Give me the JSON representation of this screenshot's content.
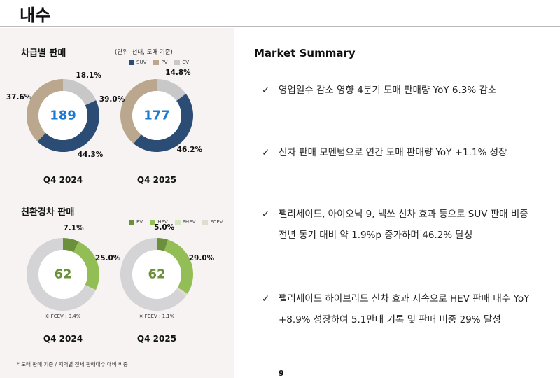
{
  "header": {
    "title": "내수"
  },
  "left": {
    "section1_title": "차급별 판매",
    "unit_note": "(단위: 천대, 도매 기준)",
    "legend1": [
      {
        "label": "SUV",
        "color": "#2b4c74"
      },
      {
        "label": "PV",
        "color": "#bba78e"
      },
      {
        "label": "CV",
        "color": "#c8c8c8"
      }
    ],
    "section2_title": "친환경차 판매",
    "legend2": [
      {
        "label": "EV",
        "color": "#6b8f3a"
      },
      {
        "label": "HEV",
        "color": "#93bd55"
      },
      {
        "label": "PHEV",
        "color": "#d6e6c0"
      },
      {
        "label": "FCEV",
        "color": "#e0ddd0"
      }
    ],
    "footnote": "* 도매 판매 기준 / 지역별 전체 판매대수 대비 비중"
  },
  "chart_data": [
    {
      "type": "pie",
      "donut": true,
      "period": "Q4 2024",
      "total": "189",
      "total_color": "#1a7ad4",
      "slices": [
        {
          "name": "CV",
          "value": 18.1,
          "label": "18.1%",
          "color": "#c8c8c8"
        },
        {
          "name": "SUV",
          "value": 44.3,
          "label": "44.3%",
          "color": "#2b4c74"
        },
        {
          "name": "PV",
          "value": 37.6,
          "label": "37.6%",
          "color": "#bba78e"
        }
      ]
    },
    {
      "type": "pie",
      "donut": true,
      "period": "Q4 2025",
      "total": "177",
      "total_color": "#1a7ad4",
      "slices": [
        {
          "name": "CV",
          "value": 14.8,
          "label": "14.8%",
          "color": "#c8c8c8"
        },
        {
          "name": "SUV",
          "value": 46.2,
          "label": "46.2%",
          "color": "#2b4c74"
        },
        {
          "name": "PV",
          "value": 39.0,
          "label": "39.0%",
          "color": "#bba78e"
        }
      ]
    },
    {
      "type": "pie",
      "donut": true,
      "period": "Q4 2024",
      "total": "62",
      "total_color": "#6b8f3a",
      "note": "※ FCEV : 0.4%",
      "slices": [
        {
          "name": "EV",
          "value": 7.1,
          "label": "7.1%",
          "color": "#6b8f3a"
        },
        {
          "name": "HEV",
          "value": 25.0,
          "label": "25.0%",
          "color": "#93bd55"
        },
        {
          "name": "FCEV",
          "value": 0.4,
          "label": "",
          "color": "#e0ddd0"
        },
        {
          "name": "기타",
          "value": 67.5,
          "label": "",
          "color": "#d4d3d6"
        }
      ]
    },
    {
      "type": "pie",
      "donut": true,
      "period": "Q4 2025",
      "total": "62",
      "total_color": "#6b8f3a",
      "note": "※ FCEV : 1.1%",
      "slices": [
        {
          "name": "EV",
          "value": 5.0,
          "label": "5.0%",
          "color": "#6b8f3a"
        },
        {
          "name": "HEV",
          "value": 29.0,
          "label": "29.0%",
          "color": "#93bd55"
        },
        {
          "name": "FCEV",
          "value": 1.1,
          "label": "",
          "color": "#e0ddd0"
        },
        {
          "name": "기타",
          "value": 64.9,
          "label": "",
          "color": "#d4d3d6"
        }
      ]
    }
  ],
  "summary": {
    "title": "Market Summary",
    "check_icon": "✓",
    "bullets": [
      [
        "영업일수 감소 영향 4분기 도매 판매량 YoY 6.3% 감소"
      ],
      [
        "신차 판매 모멘텀으로 연간 도매 판매량 YoY +1.1% 성장"
      ],
      [
        "팰리세이드, 아이오닉 9, 넥쏘 신차 효과 등으로 SUV 판매 비중",
        "전년 동기 대비 약 1.9%p 증가하며 46.2% 달성"
      ],
      [
        "팰리세이드 하이브리드 신차 효과 지속으로 HEV 판매 대수 YoY",
        "+8.9% 성장하여 5.1만대 기록 및 판매 비중 29% 달성"
      ]
    ]
  },
  "page_number": "9"
}
